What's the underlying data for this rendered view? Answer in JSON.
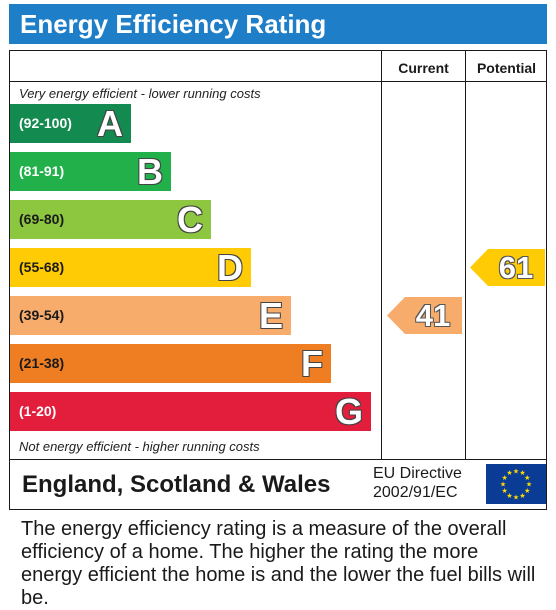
{
  "title": "Energy Efficiency Rating",
  "columns": {
    "current": "Current",
    "potential": "Potential"
  },
  "top_note": "Very energy efficient - lower running costs",
  "bottom_note": "Not energy efficient - higher running costs",
  "colors": {
    "header": "#1e7ec8",
    "A": "#138a4f",
    "B": "#22b04b",
    "C": "#8dc63f",
    "D": "#ffcb05",
    "E": "#f7ac6b",
    "F": "#ef7d22",
    "G": "#e31d3c",
    "flag": "#0a3c96",
    "stars": "#ffdd00"
  },
  "chart_data": {
    "type": "bar",
    "title": "Energy Efficiency Rating",
    "categories": [
      "A",
      "B",
      "C",
      "D",
      "E",
      "F",
      "G"
    ],
    "ranges": [
      "(92-100)",
      "(81-91)",
      "(69-80)",
      "(55-68)",
      "(39-54)",
      "(21-38)",
      "(1-20)"
    ],
    "current": {
      "value": 41,
      "band": "E"
    },
    "potential": {
      "value": 61,
      "band": "D"
    }
  },
  "footer": {
    "region": "England, Scotland & Wales",
    "directive_line1": "EU Directive",
    "directive_line2": "2002/91/EC",
    "flag_icon": "eu-flag-icon"
  },
  "explanation": "The energy efficiency rating is a measure of the overall efficiency of a home. The higher the rating the more energy efficient the home is and the lower the fuel bills will be."
}
